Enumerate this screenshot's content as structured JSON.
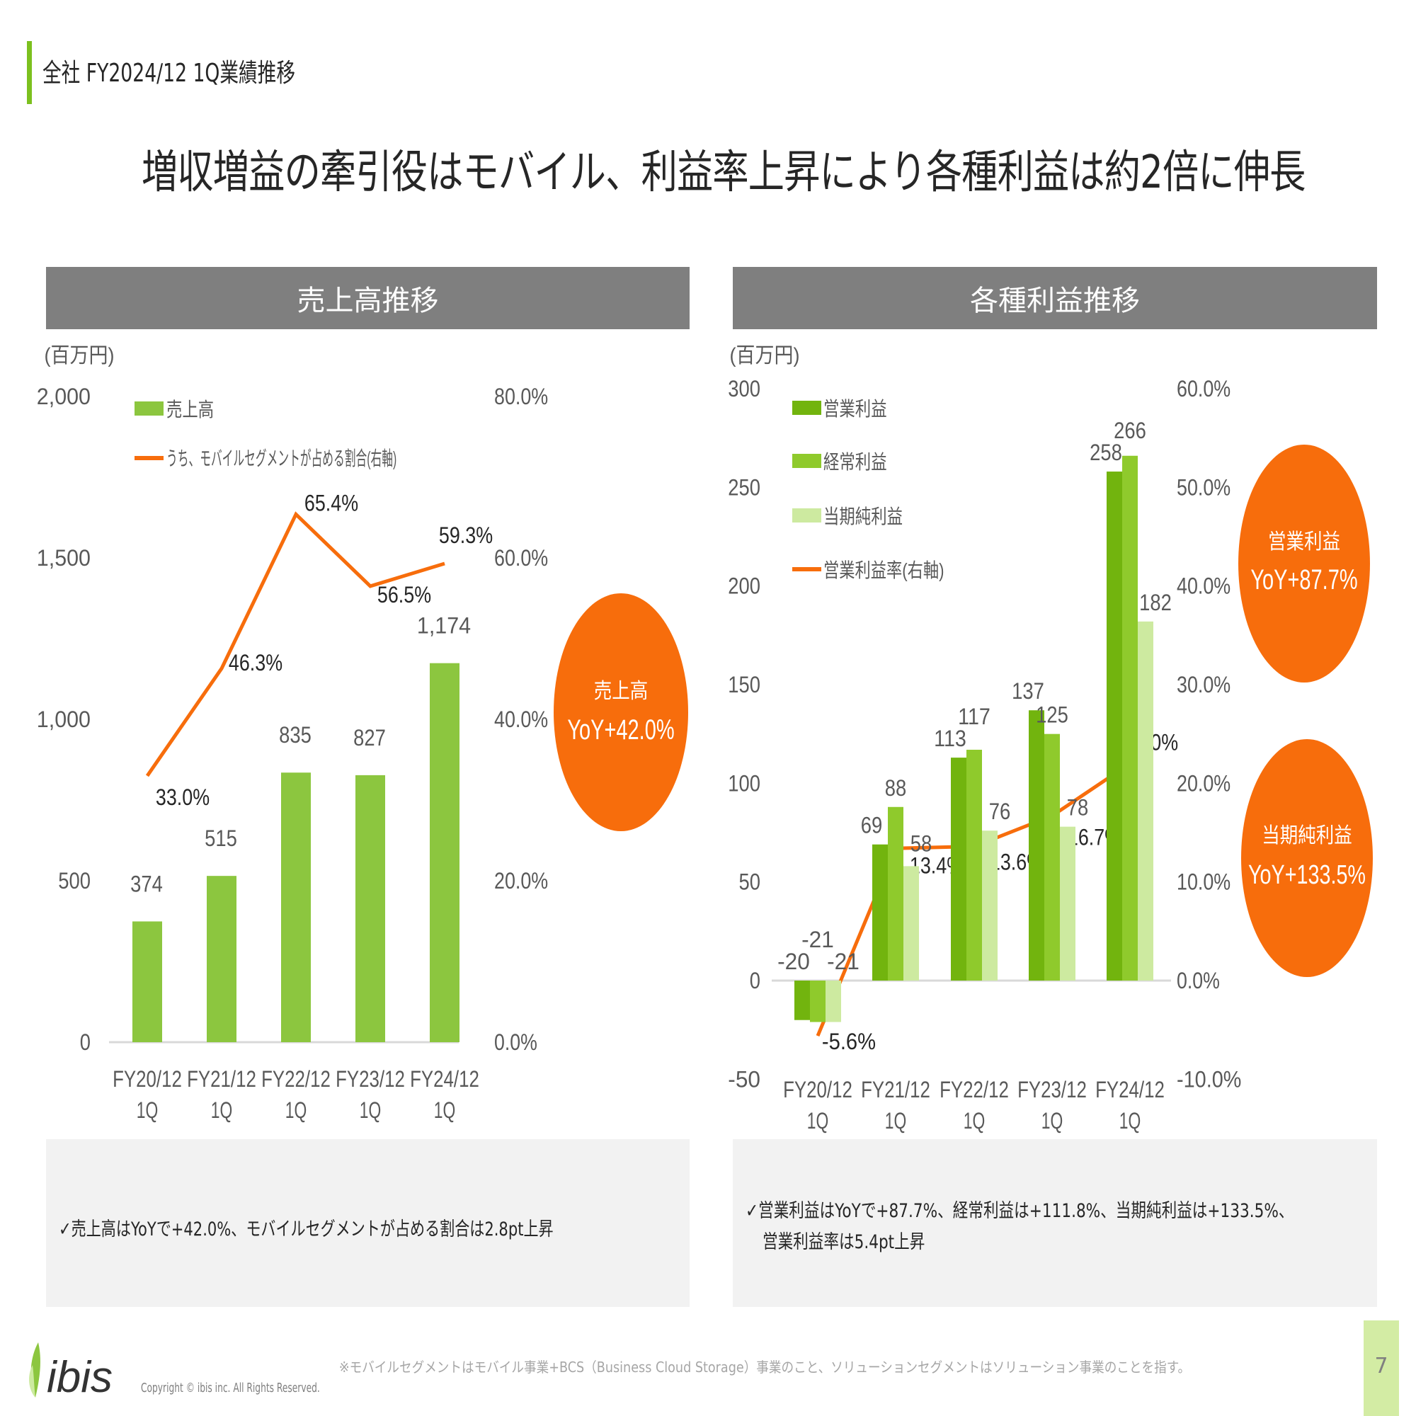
{
  "header": {
    "section": "全社 FY2024/12 1Q業績推移",
    "title": "増収増益の牽引役はモバイル、利益率上昇により各種利益は約2倍に伸長"
  },
  "colors": {
    "accent": "#7cc01e",
    "orange": "#f76d0c",
    "op": "#72b40e",
    "ord": "#8fca2c",
    "net": "#cdeaa0",
    "sales": "#8cc63f",
    "panel": "#7f7f7f"
  },
  "left_panel": {
    "title": "売上高推移",
    "unit": "(百万円)",
    "callout_label": "売上高",
    "callout_value": "YoY+42.0%",
    "note": "✓売上高はYoYで+42.0%、モバイルセグメントが占める割合は2.8pt上昇"
  },
  "right_panel": {
    "title": "各種利益推移",
    "unit": "(百万円)",
    "callout1_label": "営業利益",
    "callout1_value": "YoY+87.7%",
    "callout2_label": "当期純利益",
    "callout2_value": "YoY+133.5%",
    "note_line1": "✓営業利益はYoYで+87.7%、経常利益は+111.8%、当期純利益は+133.5%、",
    "note_line2": "営業利益率は5.4pt上昇"
  },
  "footer": {
    "logo": "ibis",
    "copyright": "Copyright © ibis inc. All Rights Reserved.",
    "footnote": "※モバイルセグメントはモバイル事業+BCS（Business Cloud Storage）事業のこと、ソリューションセグメントはソリューション事業のことを指す。",
    "page": "7"
  },
  "chart_data": [
    {
      "type": "bar",
      "title": "売上高推移",
      "categories": [
        [
          "FY20/12",
          "1Q"
        ],
        [
          "FY21/12",
          "1Q"
        ],
        [
          "FY22/12",
          "1Q"
        ],
        [
          "FY23/12",
          "1Q"
        ],
        [
          "FY24/12",
          "1Q"
        ]
      ],
      "series": [
        {
          "name": "売上高",
          "kind": "bar",
          "axis": "left",
          "values": [
            374,
            515,
            835,
            827,
            1174
          ],
          "labels": [
            "374",
            "515",
            "835",
            "827",
            "1,174"
          ]
        },
        {
          "name": "うち、モバイルセグメントが占める割合(右軸)",
          "kind": "line",
          "axis": "right",
          "values": [
            33.0,
            46.3,
            65.4,
            56.5,
            59.3
          ],
          "labels": [
            "33.0%",
            "46.3%",
            "65.4%",
            "56.5%",
            "59.3%"
          ]
        }
      ],
      "ylabel": "(百万円)",
      "ylim": [
        0,
        2000
      ],
      "yticks": [
        "0",
        "500",
        "1,000",
        "1,500",
        "2,000"
      ],
      "y2lim": [
        0,
        80
      ],
      "y2ticks": [
        "0.0%",
        "20.0%",
        "40.0%",
        "60.0%",
        "80.0%"
      ],
      "legend": "top-left"
    },
    {
      "type": "bar",
      "title": "各種利益推移",
      "categories": [
        [
          "FY20/12",
          "1Q"
        ],
        [
          "FY21/12",
          "1Q"
        ],
        [
          "FY22/12",
          "1Q"
        ],
        [
          "FY23/12",
          "1Q"
        ],
        [
          "FY24/12",
          "1Q"
        ]
      ],
      "series": [
        {
          "name": "営業利益",
          "kind": "bar",
          "axis": "left",
          "values": [
            -20,
            69,
            113,
            137,
            258
          ],
          "labels": [
            "-20",
            "69",
            "113",
            "137",
            "258"
          ]
        },
        {
          "name": "経常利益",
          "kind": "bar",
          "axis": "left",
          "values": [
            -21,
            88,
            117,
            125,
            266
          ],
          "labels": [
            "-21",
            "88",
            "117",
            "125",
            "266"
          ]
        },
        {
          "name": "当期純利益",
          "kind": "bar",
          "axis": "left",
          "values": [
            -21,
            58,
            76,
            78,
            182
          ],
          "labels": [
            "-21",
            "58",
            "76",
            "78",
            "182"
          ]
        },
        {
          "name": "営業利益率(右軸)",
          "kind": "line",
          "axis": "right",
          "values": [
            -5.6,
            13.4,
            13.6,
            16.7,
            22.0
          ],
          "labels": [
            "-5.6%",
            "13.4%",
            "13.6%",
            "16.7%",
            "22.0%"
          ]
        }
      ],
      "ylabel": "(百万円)",
      "ylim": [
        -50,
        300
      ],
      "yticks": [
        "-50",
        "0",
        "50",
        "100",
        "150",
        "200",
        "250",
        "300"
      ],
      "y2lim": [
        -10,
        60
      ],
      "y2ticks": [
        "-10.0%",
        "0.0%",
        "10.0%",
        "20.0%",
        "30.0%",
        "40.0%",
        "50.0%",
        "60.0%"
      ],
      "legend": "top-left"
    }
  ]
}
